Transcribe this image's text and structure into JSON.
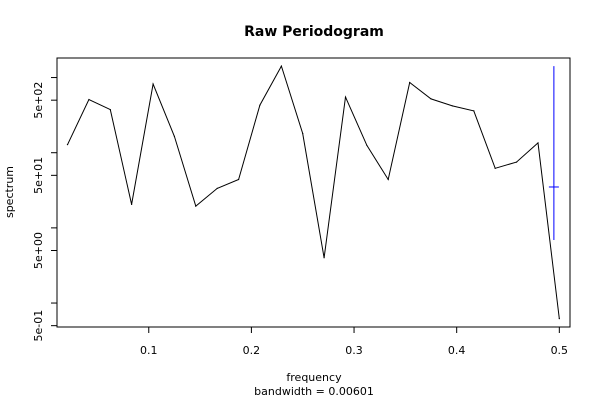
{
  "chart_data": {
    "type": "line",
    "title": "Raw Periodogram",
    "xlabel": "frequency",
    "sublabel": "bandwidth = 0.00601",
    "ylabel": "spectrum",
    "y_scale": "log10",
    "xlim": [
      0.0106,
      0.5104
    ],
    "ylim": [
      0.48,
      1820
    ],
    "x_ticks": [
      {
        "value": 0.1,
        "label": "0.1"
      },
      {
        "value": 0.2,
        "label": "0.2"
      },
      {
        "value": 0.3,
        "label": "0.3"
      },
      {
        "value": 0.4,
        "label": "0.4"
      },
      {
        "value": 0.5,
        "label": "0.5"
      }
    ],
    "y_ticks": [
      {
        "value": 0.5,
        "label": "5e-01",
        "labeled": true
      },
      {
        "value": 1,
        "label": "",
        "labeled": false
      },
      {
        "value": 5,
        "label": "5e+00",
        "labeled": true
      },
      {
        "value": 10,
        "label": "",
        "labeled": false
      },
      {
        "value": 50,
        "label": "5e+01",
        "labeled": true
      },
      {
        "value": 100,
        "label": "",
        "labeled": false
      },
      {
        "value": 500,
        "label": "5e+02",
        "labeled": true
      },
      {
        "value": 1000,
        "label": "",
        "labeled": false
      }
    ],
    "series": [
      {
        "color": "#000000",
        "x": [
          0.0208,
          0.0417,
          0.0625,
          0.0833,
          0.1042,
          0.125,
          0.1458,
          0.1667,
          0.1875,
          0.2083,
          0.2292,
          0.25,
          0.2708,
          0.2917,
          0.3125,
          0.3333,
          0.3542,
          0.375,
          0.3958,
          0.4167,
          0.4375,
          0.4583,
          0.4792,
          0.5
        ],
        "y": [
          128,
          510,
          375,
          20.5,
          820,
          165,
          19.5,
          33.5,
          44,
          430,
          1420,
          180,
          4.0,
          550,
          125,
          44,
          860,
          520,
          420,
          360,
          62,
          75,
          135,
          0.62
        ]
      }
    ],
    "bandwidth_marker": {
      "color": "#0000ff",
      "x": 0.4947,
      "y_center": 35,
      "y_low": 6.9,
      "y_high": 1420
    }
  }
}
